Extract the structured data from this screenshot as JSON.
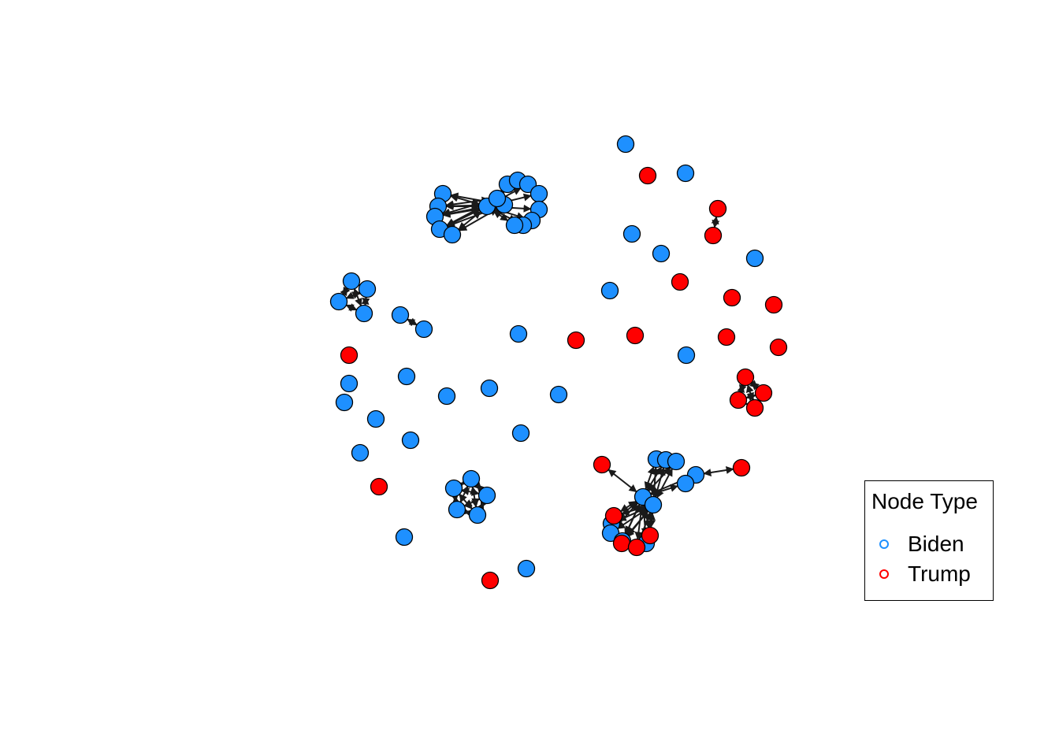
{
  "colors": {
    "Biden": "#1E90FF",
    "Trump": "#FF0000",
    "edge": "#1a1a1a",
    "node_border": "#000000"
  },
  "legend": {
    "title": "Node Type",
    "items": [
      {
        "label": "Biden",
        "color": "#1E90FF"
      },
      {
        "label": "Trump",
        "color": "#FF0000"
      }
    ]
  },
  "graph": {
    "node_types": [
      "Biden",
      "Trump"
    ],
    "groups": [
      {
        "members": 16,
        "type": "Biden",
        "hub": true
      },
      {
        "members": 4,
        "type": "Biden"
      },
      {
        "members": 2,
        "type": "Biden"
      },
      {
        "members": 5,
        "type": "Biden"
      },
      {
        "members": 2,
        "type": "Trump"
      },
      {
        "members": 4,
        "type": "Trump"
      },
      {
        "members": 17,
        "mixed": true
      }
    ]
  }
}
